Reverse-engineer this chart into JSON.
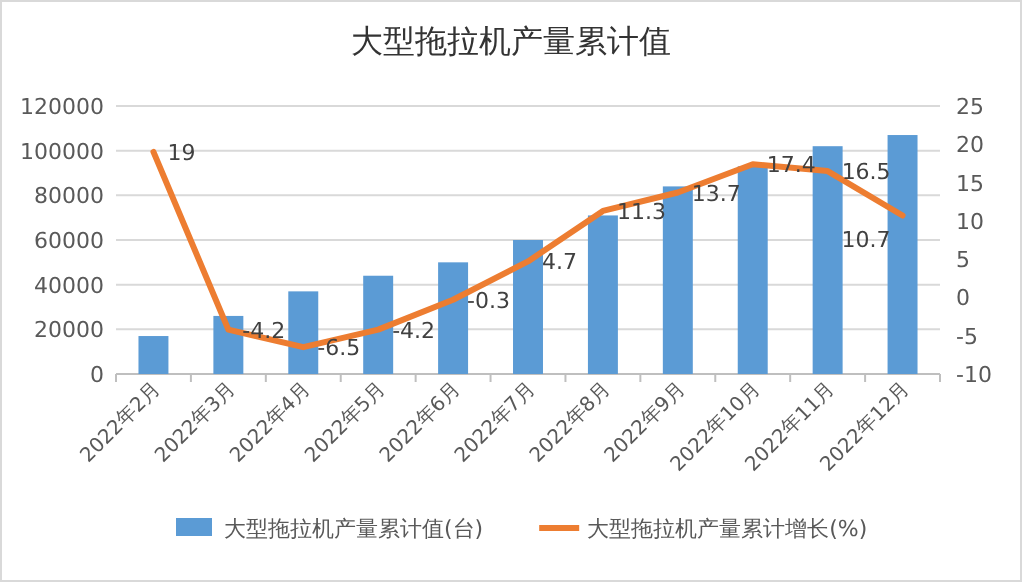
{
  "chart_data": {
    "type": "bar",
    "title": "大型拖拉机产量累计值",
    "categories": [
      "2022年2月",
      "2022年3月",
      "2022年4月",
      "2022年5月",
      "2022年6月",
      "2022年7月",
      "2022年8月",
      "2022年9月",
      "2022年10月",
      "2022年11月",
      "2022年12月"
    ],
    "series": [
      {
        "name": "大型拖拉机产量累计值(台)",
        "color": "#5b9bd5",
        "values": [
          17000,
          26000,
          37000,
          44000,
          50000,
          60000,
          71000,
          84000,
          93000,
          102000,
          107000
        ]
      },
      {
        "name": "大型拖拉机产量累计增长(%)",
        "type": "line",
        "axis": "y2",
        "color": "#ed7d31",
        "marker": "none",
        "values": [
          19,
          -4.2,
          -6.5,
          -4.2,
          -0.3,
          4.7,
          11.3,
          13.7,
          17.4,
          16.5,
          10.7
        ],
        "value_labels": [
          "19",
          "-4.2",
          "-6.5",
          "-4.2",
          "-0.3",
          "4.7",
          "11.3",
          "13.7",
          "17.4",
          "16.5",
          "10.7"
        ]
      }
    ],
    "ylim": [
      0,
      120000
    ],
    "yticks": [
      0,
      20000,
      40000,
      60000,
      80000,
      100000,
      120000
    ],
    "y2lim": [
      -10,
      25
    ],
    "y2ticks": [
      -10,
      -5,
      0,
      5,
      10,
      15,
      20,
      25
    ],
    "grid": "y",
    "legend": "bottom"
  }
}
